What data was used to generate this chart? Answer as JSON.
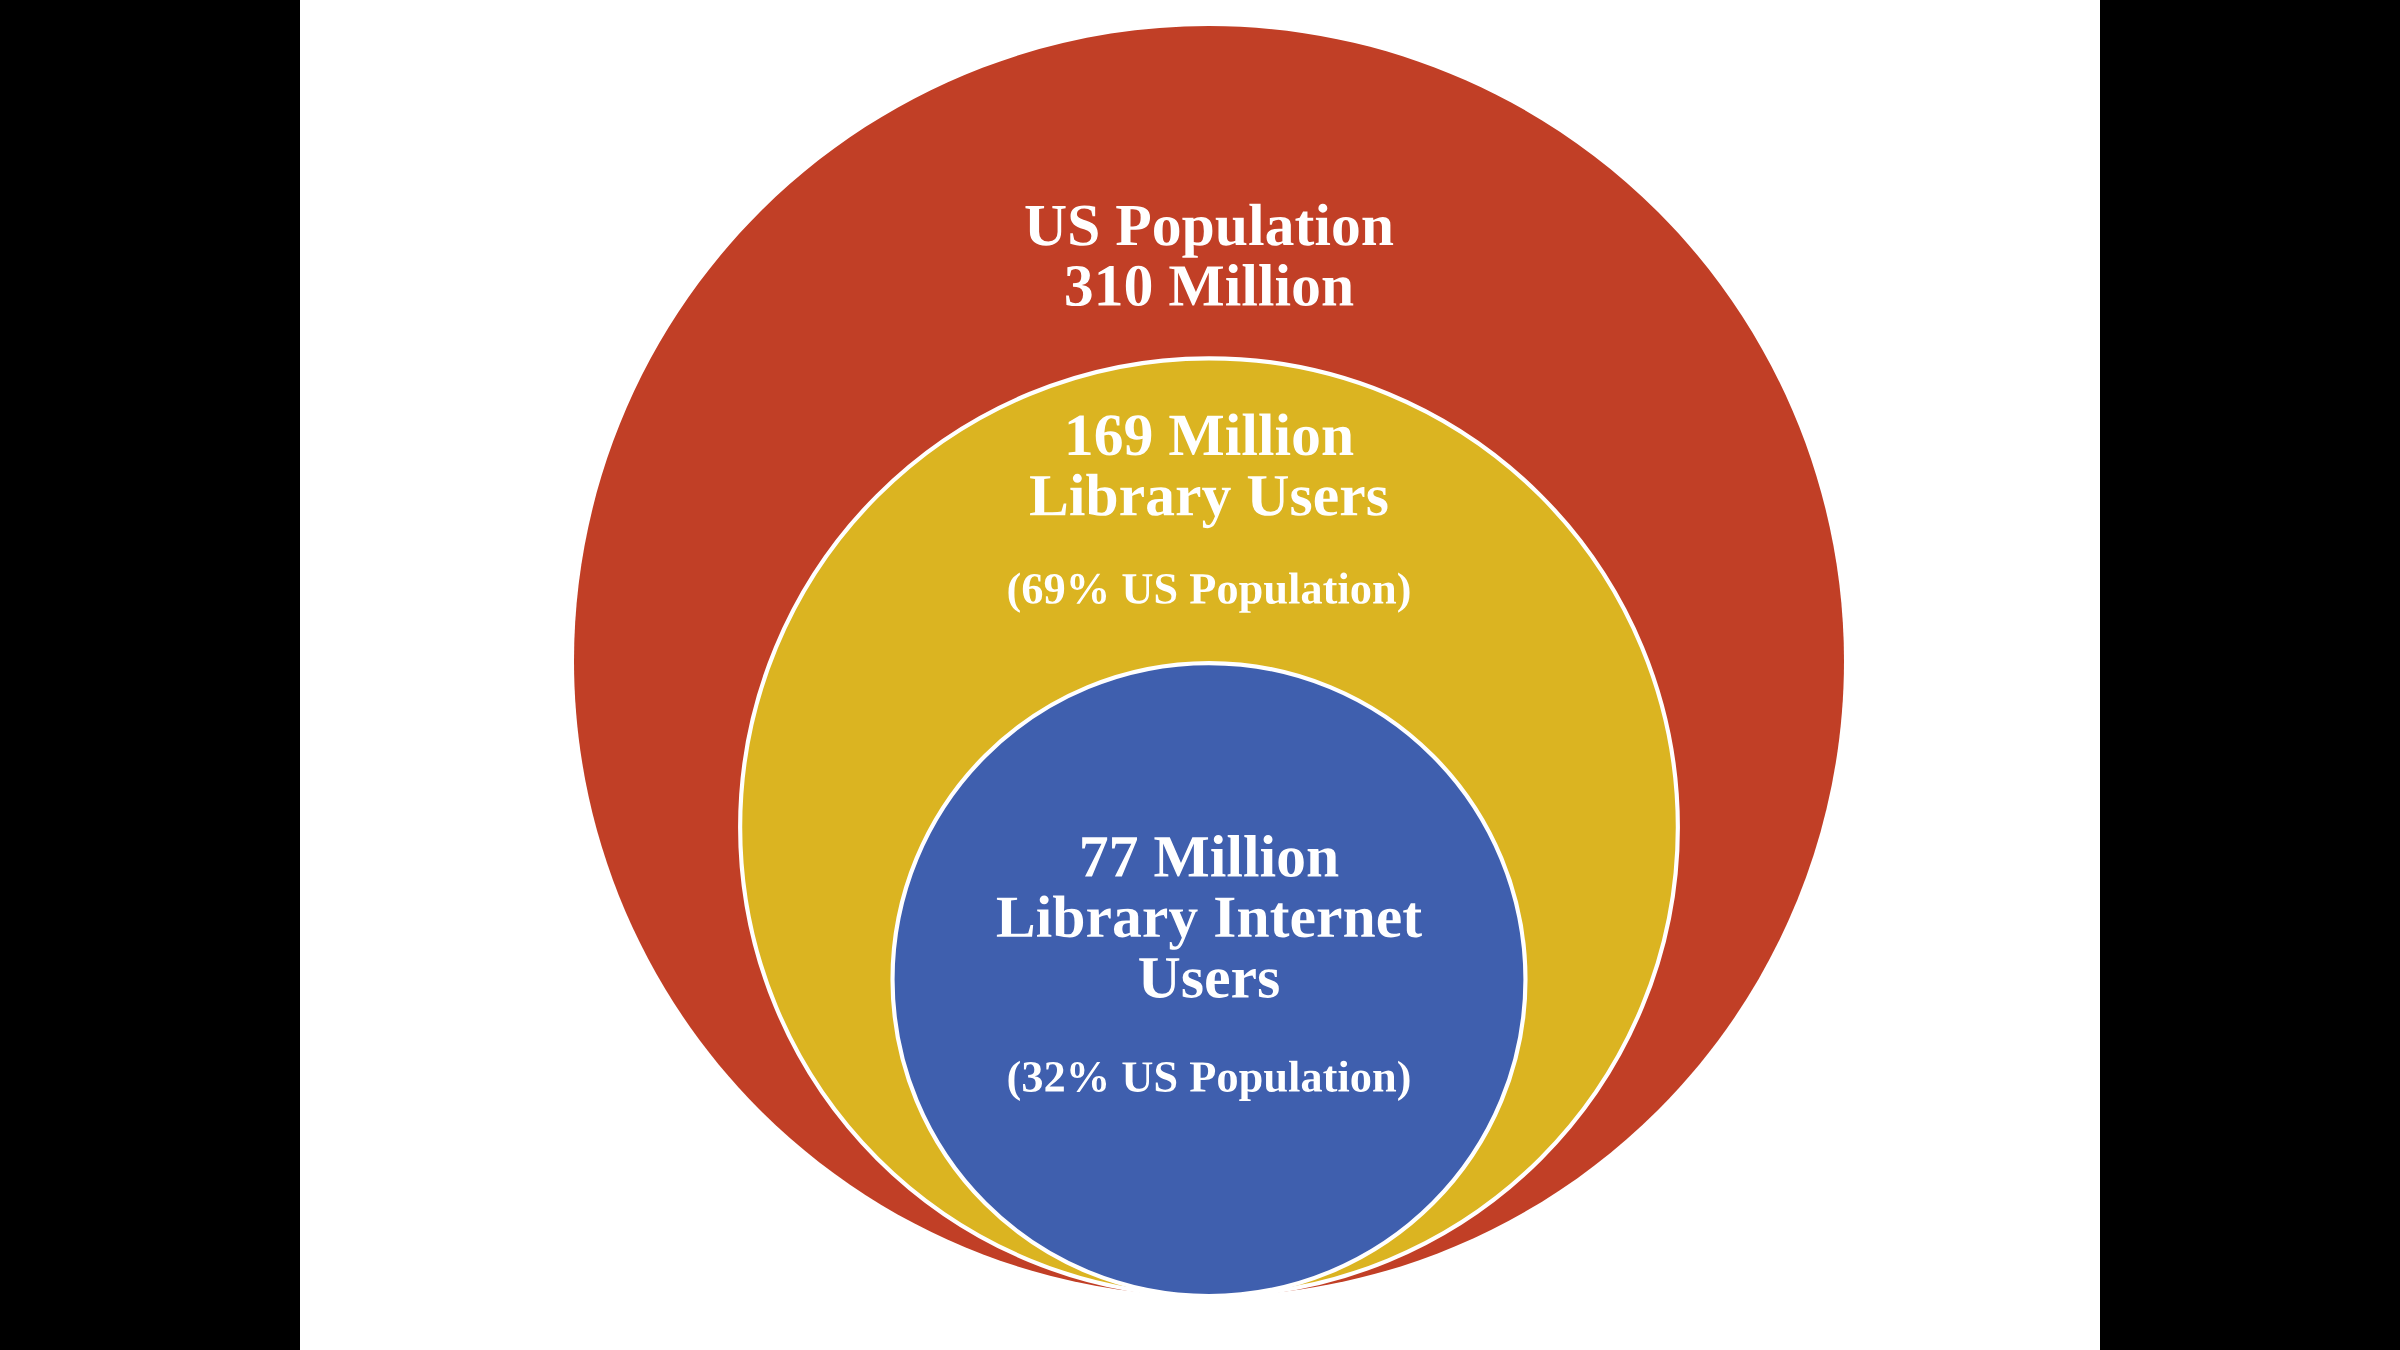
{
  "chart_data": {
    "type": "other",
    "values": [
      310,
      169,
      77
    ],
    "colors": [
      "#c13f26",
      "#dbb421",
      "#3f5fae"
    ],
    "value_labels": [
      "US Population\n310 Million",
      "169 Million\nLibrary Users",
      "77 Million\nLibrary Internet\nUsers"
    ],
    "annotations": [
      "(69% US Population)",
      "(32% US Population)"
    ]
  }
}
